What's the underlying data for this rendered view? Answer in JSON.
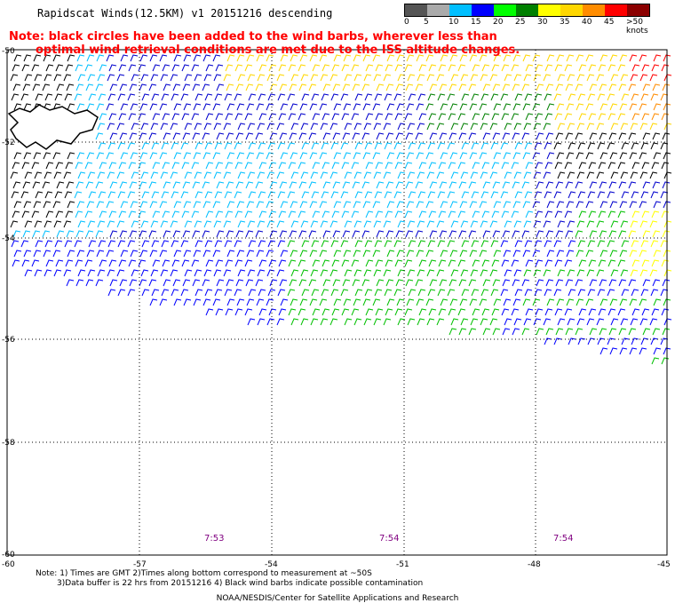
{
  "title": "Rapidscat Winds(12.5KM) v1 20151216 descending",
  "note": {
    "line1": "Note: black circles have been added to the wind barbs, wherever less than",
    "line2": "optimal wind retrieval conditions are met due to the ISS altitude changes."
  },
  "legend": {
    "colors": [
      "#555555",
      "#aaaaaa",
      "#00bfff",
      "#0000ff",
      "#00ff00",
      "#008000",
      "#ffff00",
      "#ffd700",
      "#ff8c00",
      "#ff0000",
      "#8b0000",
      "#8b4513",
      "#ff00ff",
      "#800080",
      "#000080"
    ],
    "labels": [
      "0",
      "5",
      "10",
      "15",
      "20",
      "25",
      "30",
      "35",
      "40",
      "45",
      ">50 knots"
    ]
  },
  "lat_labels": [
    "-50",
    "-52",
    "-54",
    "-56",
    "-58",
    "-60"
  ],
  "lon_labels": [
    "-60",
    "-57",
    "-54",
    "-51",
    "-48",
    "-45"
  ],
  "times": [
    "7:53",
    "7:54",
    "7:54"
  ],
  "footnote": {
    "line1": "Note: 1) Times are GMT 2)Times along bottom correspond to measurement at ~50S",
    "line2": "3)Data buffer is 22 hrs from 20151216 4) Black wind barbs indicate possible contamination"
  },
  "credit": "NOAA/NESDIS/Center for Satellite Applications and Research"
}
